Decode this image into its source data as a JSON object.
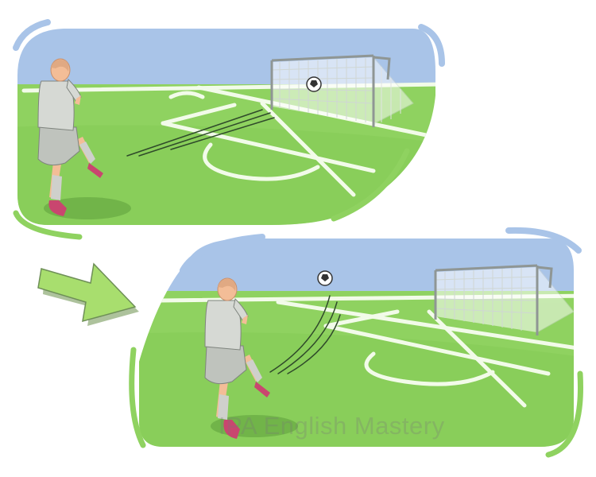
{
  "illustration": {
    "description_icons": [
      "soccer-ball-icon",
      "goal-net-icon",
      "player-icon",
      "arrow-right-icon"
    ],
    "colors": {
      "sky": "#a9c4e8",
      "grass": "#8fd260",
      "grass_dark": "#74c04c",
      "line": "#f2fbe9",
      "arrow": "#a8de6e",
      "arrow_shadow": "#6a8f4a",
      "shirt": "#d6d9d4",
      "skin": "#f3bd97",
      "shoe": "#c9466f"
    }
  },
  "watermark": {
    "text": "IPA English Mastery"
  }
}
